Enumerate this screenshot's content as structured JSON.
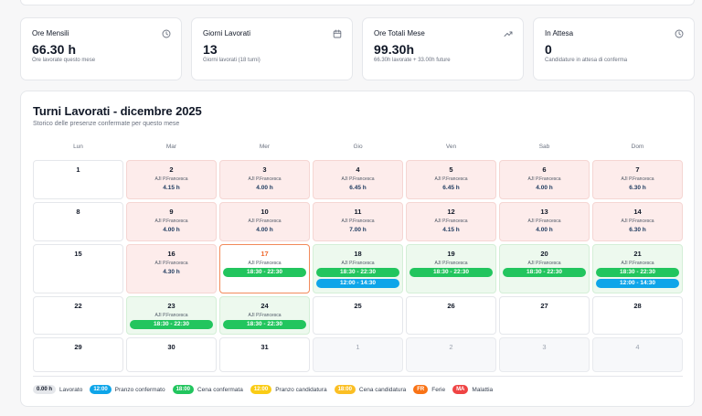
{
  "stats": [
    {
      "label": "Ore Mensili",
      "value": "66.30 h",
      "sub": "Ore lavorate questo mese",
      "icon": "clock-icon"
    },
    {
      "label": "Giorni Lavorati",
      "value": "13",
      "sub": "Giorni lavorati (18 turni)",
      "icon": "calendar-icon"
    },
    {
      "label": "Ore Totali Mese",
      "value": "99.30h",
      "sub": "66.30h lavorate + 33.00h future",
      "icon": "trending-up-icon"
    },
    {
      "label": "In Attesa",
      "value": "0",
      "sub": "Candidature in attesa di conferma",
      "icon": "clock-icon"
    }
  ],
  "calendar": {
    "title": "Turni Lavorati - dicembre 2025",
    "subtitle": "Storico delle presenze confermate per questo mese",
    "day_names": [
      "Lun",
      "Mar",
      "Mer",
      "Gio",
      "Ven",
      "Sab",
      "Dom"
    ],
    "weeks": [
      [
        {
          "day": "1"
        },
        {
          "day": "2",
          "status": "worked",
          "location": "AJI P.Francesca",
          "hours": "4.15 h"
        },
        {
          "day": "3",
          "status": "worked",
          "location": "AJI P.Francesca",
          "hours": "4.00 h"
        },
        {
          "day": "4",
          "status": "worked",
          "location": "AJI P.Francesca",
          "hours": "6.45 h"
        },
        {
          "day": "5",
          "status": "worked",
          "location": "AJI P.Francesca",
          "hours": "6.45 h"
        },
        {
          "day": "6",
          "status": "worked",
          "location": "AJI P.Francesca",
          "hours": "4.00 h"
        },
        {
          "day": "7",
          "status": "worked",
          "location": "AJI P.Francesca",
          "hours": "6.30 h"
        }
      ],
      [
        {
          "day": "8"
        },
        {
          "day": "9",
          "status": "worked",
          "location": "AJI P.Francesca",
          "hours": "4.00 h"
        },
        {
          "day": "10",
          "status": "worked",
          "location": "AJI P.Francesca",
          "hours": "4.00 h"
        },
        {
          "day": "11",
          "status": "worked",
          "location": "AJI P.Francesca",
          "hours": "7.00 h"
        },
        {
          "day": "12",
          "status": "worked",
          "location": "AJI P.Francesca",
          "hours": "4.15 h"
        },
        {
          "day": "13",
          "status": "worked",
          "location": "AJI P.Francesca",
          "hours": "4.00 h"
        },
        {
          "day": "14",
          "status": "worked",
          "location": "AJI P.Francesca",
          "hours": "6.30 h"
        }
      ],
      [
        {
          "day": "15"
        },
        {
          "day": "16",
          "status": "worked",
          "location": "AJI P.Francesca",
          "hours": "4.30 h"
        },
        {
          "day": "17",
          "status": "today",
          "location": "AJI P.Francesca",
          "shifts": [
            {
              "time": "18:30 - 22:30",
              "color": "green"
            }
          ]
        },
        {
          "day": "18",
          "status": "confirmed",
          "location": "AJI P.Francesca",
          "shifts": [
            {
              "time": "18:30 - 22:30",
              "color": "green"
            },
            {
              "time": "12:00 - 14:30",
              "color": "blue"
            }
          ]
        },
        {
          "day": "19",
          "status": "confirmed",
          "location": "AJI P.Francesca",
          "shifts": [
            {
              "time": "18:30 - 22:30",
              "color": "green"
            }
          ]
        },
        {
          "day": "20",
          "status": "confirmed",
          "location": "AJI P.Francesca",
          "shifts": [
            {
              "time": "18:30 - 22:30",
              "color": "green"
            }
          ]
        },
        {
          "day": "21",
          "status": "confirmed",
          "location": "AJI P.Francesca",
          "shifts": [
            {
              "time": "18:30 - 22:30",
              "color": "green"
            },
            {
              "time": "12:00 - 14:30",
              "color": "blue"
            }
          ]
        }
      ],
      [
        {
          "day": "22"
        },
        {
          "day": "23",
          "status": "confirmed",
          "location": "AJI P.Francesca",
          "shifts": [
            {
              "time": "18:30 - 22:30",
              "color": "green"
            }
          ]
        },
        {
          "day": "24",
          "status": "confirmed",
          "location": "AJI P.Francesca",
          "shifts": [
            {
              "time": "18:30 - 22:30",
              "color": "green"
            }
          ]
        },
        {
          "day": "25"
        },
        {
          "day": "26"
        },
        {
          "day": "27"
        },
        {
          "day": "28"
        }
      ],
      [
        {
          "day": "29"
        },
        {
          "day": "30"
        },
        {
          "day": "31"
        },
        {
          "day": "1",
          "status": "outside"
        },
        {
          "day": "2",
          "status": "outside"
        },
        {
          "day": "3",
          "status": "outside"
        },
        {
          "day": "4",
          "status": "outside"
        }
      ]
    ]
  },
  "legend": [
    {
      "badge": "0.00 h",
      "label": "Lavorato",
      "class": "b-gray"
    },
    {
      "badge": "12:00",
      "label": "Pranzo confermato",
      "class": "b-blue"
    },
    {
      "badge": "18:00",
      "label": "Cena confermata",
      "class": "b-green"
    },
    {
      "badge": "12:00",
      "label": "Pranzo candidatura",
      "class": "b-yellow"
    },
    {
      "badge": "18:00",
      "label": "Cena candidatura",
      "class": "b-amber"
    },
    {
      "badge": "FR",
      "label": "Ferie",
      "class": "b-orange"
    },
    {
      "badge": "MA",
      "label": "Malattia",
      "class": "b-red"
    }
  ]
}
